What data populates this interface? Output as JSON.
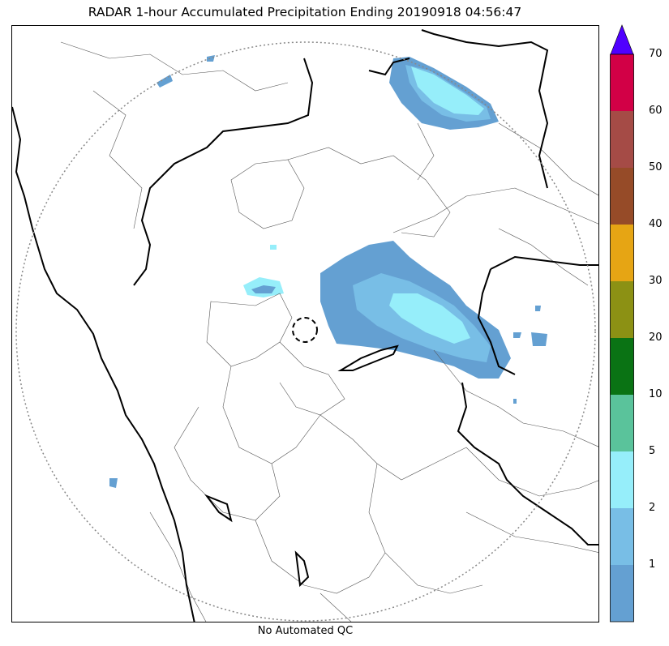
{
  "title": "RADAR 1-hour Accumulated Precipitation Ending 20190918 04:56:47",
  "footer": "No Automated QC",
  "colorbar": {
    "levels": [
      {
        "label": "1",
        "color": "#64a0d2"
      },
      {
        "label": "2",
        "color": "#78bee6"
      },
      {
        "label": "5",
        "color": "#96eefa"
      },
      {
        "label": "10",
        "color": "#5ac39b"
      },
      {
        "label": "20",
        "color": "#0a7314"
      },
      {
        "label": "30",
        "color": "#8c9114"
      },
      {
        "label": "40",
        "color": "#e6a514"
      },
      {
        "label": "50",
        "color": "#964b28"
      },
      {
        "label": "60",
        "color": "#a54b46"
      },
      {
        "label": "70",
        "color": "#d20046"
      }
    ],
    "extend_color": "#5000ff",
    "bottom_color": "#64a0d2"
  },
  "legend_colors": {
    "border": "#000000",
    "district": "#555555",
    "range_ring": "#888888"
  }
}
